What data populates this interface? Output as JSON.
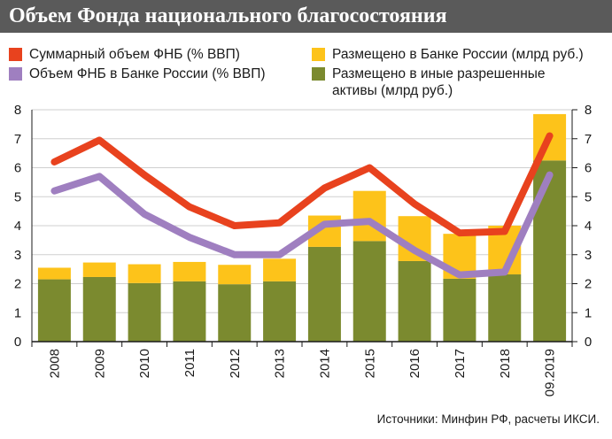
{
  "title": "Объем Фонда национального благосостояния",
  "legend": [
    {
      "label": "Суммарный объем ФНБ (% ВВП)",
      "color": "#e8421e",
      "kind": "line"
    },
    {
      "label": "Объем ФНБ в Банке России (% ВВП)",
      "color": "#9f7fc0",
      "kind": "line"
    },
    {
      "label": "Размещено в Банке России (млрд руб.)",
      "color": "#fdc31a",
      "kind": "bar"
    },
    {
      "label": "Размещено в иные разрешенные активы (млрд руб.)",
      "color": "#7b8a2f",
      "kind": "bar"
    }
  ],
  "source": "Источники: Минфин РФ, расчеты ИКСИ.",
  "chart_data": {
    "type": "bar",
    "categories": [
      "2008",
      "2009",
      "2010",
      "2011",
      "2012",
      "2013",
      "2014",
      "2015",
      "2016",
      "2017",
      "2018",
      "09.2019"
    ],
    "ylim": [
      0,
      8
    ],
    "yticks": [
      "0",
      "1",
      "2",
      "3",
      "4",
      "5",
      "6",
      "7",
      "8"
    ],
    "bar_series": [
      {
        "name": "Размещено в иные разрешенные активы (млрд руб.)",
        "color": "#7b8a2f",
        "values": [
          2.15,
          2.23,
          2.02,
          2.08,
          1.98,
          2.08,
          3.27,
          3.47,
          2.78,
          2.17,
          2.32,
          6.25
        ]
      },
      {
        "name": "Размещено в Банке России (млрд руб.)",
        "color": "#fdc31a",
        "values": [
          0.4,
          0.5,
          0.65,
          0.67,
          0.67,
          0.78,
          1.08,
          1.73,
          1.55,
          1.55,
          1.68,
          1.6
        ]
      }
    ],
    "line_series": [
      {
        "name": "Суммарный объем ФНБ (% ВВП)",
        "color": "#e8421e",
        "values": [
          6.2,
          6.95,
          5.75,
          4.65,
          4.0,
          4.1,
          5.3,
          6.0,
          4.75,
          3.75,
          3.8,
          7.1
        ]
      },
      {
        "name": "Объем ФНБ в Банке России (% ВВП)",
        "color": "#9f7fc0",
        "values": [
          5.2,
          5.7,
          4.4,
          3.6,
          3.0,
          3.0,
          4.05,
          4.15,
          3.15,
          2.3,
          2.4,
          5.75
        ]
      }
    ]
  }
}
